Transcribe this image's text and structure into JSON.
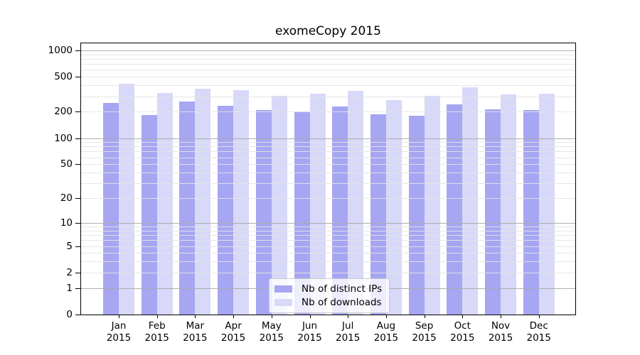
{
  "chart_data": {
    "type": "bar",
    "title": "exomeCopy 2015",
    "xlabel": "",
    "ylabel": "",
    "categories": [
      "Jan",
      "Feb",
      "Mar",
      "Apr",
      "May",
      "Jun",
      "Jul",
      "Aug",
      "Sep",
      "Oct",
      "Nov",
      "Dec"
    ],
    "year_label": "2015",
    "series": [
      {
        "name": "Nb of distinct IPs",
        "color": "#a6a6f2",
        "values": [
          250,
          183,
          264,
          234,
          209,
          201,
          230,
          188,
          181,
          244,
          213,
          210
        ]
      },
      {
        "name": "Nb of downloads",
        "color": "#d8d8f8",
        "values": [
          421,
          328,
          368,
          352,
          305,
          323,
          345,
          273,
          306,
          378,
          315,
          319
        ]
      }
    ],
    "yaxis": {
      "scale": "log1p",
      "ylim": [
        0,
        1000
      ],
      "ticks": [
        0,
        1,
        2,
        5,
        10,
        20,
        50,
        100,
        200,
        500,
        1000
      ],
      "major_gridlines": [
        1,
        10,
        100,
        1000
      ],
      "minor_gridlines": [
        2,
        3,
        4,
        5,
        6,
        7,
        8,
        9,
        20,
        30,
        40,
        50,
        60,
        70,
        80,
        90,
        200,
        300,
        400,
        500,
        600,
        700,
        800,
        900
      ],
      "grid": "on"
    },
    "legend": {
      "position": "lower center"
    },
    "colors": {
      "grid_major": "#b0b0b0",
      "grid_minor": "#e6e6e6",
      "axis": "#000000",
      "background": "#ffffff"
    }
  }
}
